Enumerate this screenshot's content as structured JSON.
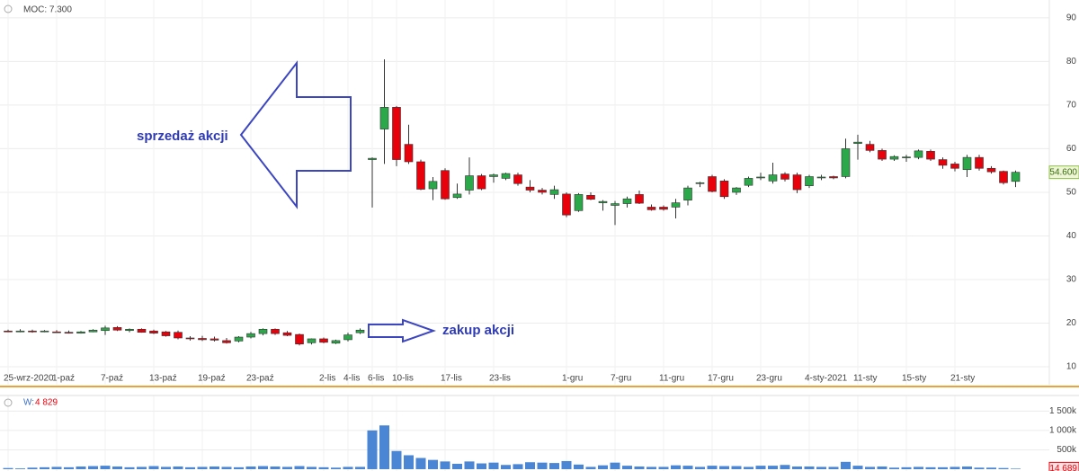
{
  "chart_data": [
    {
      "type": "candlestick",
      "indicator": "MOC: 7.300",
      "annotations": [
        "sprzedaż akcji",
        "zakup akcji"
      ],
      "categories": [
        "25-wrz-2020",
        null,
        null,
        null,
        "1-paź",
        null,
        null,
        null,
        "7-paź",
        null,
        null,
        null,
        "13-paź",
        null,
        null,
        null,
        "19-paź",
        null,
        null,
        null,
        "23-paź",
        null,
        null,
        null,
        null,
        null,
        "2-lis",
        null,
        "4-lis",
        null,
        "6-lis",
        null,
        "10-lis",
        null,
        null,
        null,
        "17-lis",
        null,
        null,
        null,
        "23-lis",
        null,
        null,
        null,
        null,
        null,
        "1-gru",
        null,
        null,
        null,
        "7-gru",
        null,
        null,
        null,
        "11-gru",
        null,
        null,
        null,
        "17-gru",
        null,
        null,
        null,
        "23-gru",
        null,
        null,
        null,
        "4-sty-2021",
        null,
        null,
        null,
        "11-sty",
        null,
        null,
        null,
        "15-sty",
        null,
        null,
        null,
        "21-sty",
        null,
        null,
        null,
        null,
        null
      ],
      "open": [
        18.2,
        18.1,
        18.2,
        18.1,
        18.0,
        17.9,
        17.7,
        18.0,
        18.3,
        19.0,
        18.3,
        18.6,
        18.2,
        18.0,
        17.9,
        16.6,
        16.5,
        16.4,
        16.0,
        15.9,
        16.8,
        17.6,
        18.6,
        17.8,
        17.4,
        15.5,
        16.4,
        15.4,
        16.2,
        17.8,
        57.5,
        64.5,
        69.5,
        61.0,
        57.0,
        50.8,
        55.0,
        48.8,
        50.5,
        53.8,
        53.6,
        53.2,
        54.0,
        51.2,
        50.5,
        49.5,
        49.6,
        45.8,
        49.3,
        47.6,
        47.0,
        47.4,
        49.5,
        46.6,
        46.6,
        46.6,
        48.2,
        52.0,
        53.6,
        52.6,
        50.0,
        51.6,
        53.4,
        52.6,
        54.2,
        54.0,
        51.5,
        53.4,
        53.6,
        53.6,
        61.2,
        61.0,
        59.6,
        57.6,
        58.0,
        58.0,
        59.4,
        57.5,
        56.5,
        55.2,
        58.0,
        55.5,
        54.8,
        52.5
      ],
      "high": [
        18.5,
        18.6,
        18.5,
        18.4,
        18.4,
        18.3,
        18.2,
        18.6,
        19.4,
        19.3,
        18.8,
        18.8,
        18.5,
        18.2,
        18.3,
        17.0,
        17.1,
        16.9,
        16.6,
        17.0,
        18.0,
        18.8,
        18.8,
        18.2,
        17.6,
        16.5,
        16.7,
        16.2,
        17.8,
        18.8,
        58.0,
        80.5,
        69.8,
        65.5,
        57.5,
        53.5,
        55.5,
        52.0,
        58.0,
        54.2,
        54.3,
        54.5,
        54.5,
        52.8,
        51.0,
        51.5,
        50.0,
        49.8,
        50.0,
        48.2,
        48.0,
        49.0,
        50.4,
        47.2,
        47.0,
        48.5,
        51.5,
        52.4,
        54.0,
        53.0,
        51.2,
        53.6,
        54.5,
        56.8,
        54.6,
        54.5,
        54.0,
        54.0,
        53.8,
        62.3,
        63.2,
        61.8,
        60.0,
        58.5,
        58.6,
        59.8,
        59.8,
        58.0,
        57.0,
        58.6,
        58.6,
        56.0,
        55.0,
        55.0
      ],
      "low": [
        17.9,
        17.9,
        17.8,
        17.9,
        17.8,
        17.6,
        17.6,
        17.9,
        17.3,
        18.2,
        17.9,
        17.8,
        17.5,
        16.9,
        16.3,
        16.0,
        15.9,
        15.8,
        15.3,
        15.6,
        16.5,
        17.2,
        17.3,
        17.0,
        14.9,
        15.1,
        15.4,
        15.2,
        15.8,
        17.5,
        46.5,
        56.5,
        56.0,
        56.5,
        50.5,
        48.2,
        48.3,
        48.5,
        49.5,
        50.5,
        52.2,
        52.8,
        51.5,
        50.0,
        49.5,
        48.5,
        44.3,
        45.5,
        48.2,
        45.8,
        42.5,
        46.5,
        47.3,
        45.8,
        45.8,
        44.0,
        47.0,
        51.2,
        50.0,
        48.5,
        49.4,
        51.2,
        52.8,
        52.0,
        52.5,
        49.8,
        51.0,
        52.8,
        53.0,
        53.2,
        57.5,
        59.2,
        57.2,
        57.2,
        57.0,
        57.6,
        57.2,
        55.4,
        54.8,
        53.5,
        55.0,
        54.3,
        51.8,
        51.2
      ],
      "close": [
        18.1,
        18.2,
        18.0,
        18.2,
        17.9,
        17.7,
        18.0,
        18.4,
        18.9,
        18.4,
        18.6,
        17.9,
        17.7,
        17.1,
        16.6,
        16.4,
        16.2,
        16.1,
        15.5,
        16.8,
        17.6,
        18.6,
        17.6,
        17.2,
        15.2,
        16.4,
        15.6,
        16.0,
        17.3,
        18.4,
        57.8,
        69.5,
        57.5,
        57.0,
        50.7,
        52.5,
        48.5,
        49.6,
        53.8,
        50.8,
        54.0,
        54.3,
        52.0,
        50.5,
        50.0,
        50.6,
        44.8,
        49.5,
        48.4,
        47.9,
        47.4,
        48.5,
        47.5,
        46.0,
        46.1,
        47.6,
        51.0,
        52.2,
        50.2,
        49.0,
        51.0,
        53.2,
        53.5,
        54.0,
        53.0,
        50.6,
        53.6,
        53.5,
        53.3,
        60.0,
        61.5,
        59.6,
        57.6,
        58.2,
        58.1,
        59.5,
        57.6,
        56.2,
        55.5,
        58.0,
        55.5,
        54.7,
        52.2,
        54.6
      ],
      "up_color": "#2ba84a",
      "down_color": "#e8000b",
      "last_price": {
        "value": 54.6,
        "label": "54.600"
      },
      "ylim": [
        5.88,
        94.1
      ],
      "yticks": [
        10,
        20,
        30,
        40,
        50,
        60,
        70,
        80,
        90
      ],
      "grid": true
    },
    {
      "type": "bar",
      "legend_name": "W:",
      "legend_value": "4 829",
      "color": "#4a86d4",
      "values": [
        30000,
        20000,
        40000,
        50000,
        60000,
        50000,
        70000,
        80000,
        90000,
        70000,
        50000,
        60000,
        80000,
        60000,
        70000,
        50000,
        60000,
        70000,
        60000,
        50000,
        70000,
        80000,
        70000,
        60000,
        80000,
        60000,
        50000,
        40000,
        60000,
        60000,
        1000000,
        1130000,
        470000,
        360000,
        290000,
        240000,
        200000,
        140000,
        200000,
        150000,
        170000,
        110000,
        130000,
        180000,
        170000,
        160000,
        210000,
        120000,
        60000,
        100000,
        170000,
        90000,
        70000,
        60000,
        60000,
        100000,
        90000,
        60000,
        90000,
        80000,
        80000,
        60000,
        90000,
        90000,
        110000,
        70000,
        70000,
        60000,
        60000,
        190000,
        90000,
        60000,
        70000,
        40000,
        50000,
        60000,
        50000,
        50000,
        60000,
        70000,
        40000,
        40000,
        30000,
        14689
      ],
      "last_value": {
        "value": 14689,
        "label": "14 689"
      },
      "ylim": [
        0,
        1670000
      ],
      "yticks": [
        {
          "value": 500000,
          "label": "500k"
        },
        {
          "value": 1000000,
          "label": "1 000k"
        },
        {
          "value": 1500000,
          "label": "1 500k"
        }
      ]
    }
  ]
}
